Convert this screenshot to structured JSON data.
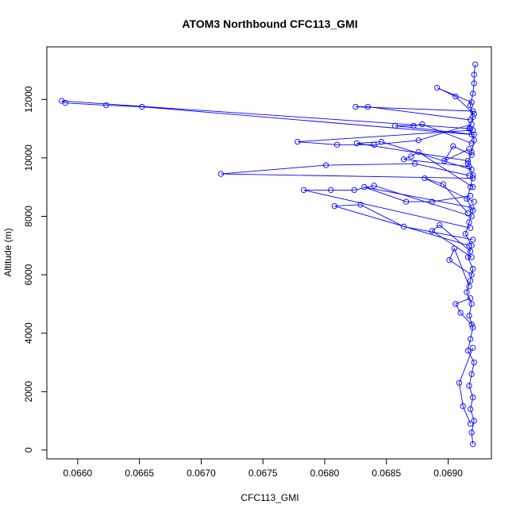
{
  "chart_data": {
    "type": "scatter",
    "title": "ATOM3 Northbound CFC113_GMI",
    "xlabel": "CFC113_GMI",
    "ylabel": "Altitude (m)",
    "xlim": [
      0.06575,
      0.06935
    ],
    "ylim": [
      -300,
      13800
    ],
    "x_ticks": [
      0.066,
      0.0665,
      0.067,
      0.0675,
      0.068,
      0.0685,
      0.069
    ],
    "x_tick_labels": [
      "0.0660",
      "0.0665",
      "0.0670",
      "0.0675",
      "0.0680",
      "0.0685",
      "0.0690"
    ],
    "y_ticks": [
      0,
      2000,
      4000,
      6000,
      8000,
      10000,
      12000
    ],
    "y_tick_labels": [
      "0",
      "2000",
      "4000",
      "6000",
      "8000",
      "10000",
      "12000"
    ],
    "grid": false,
    "legend": "none",
    "marker": "open-circle",
    "connected": true,
    "color": "#0000ff",
    "series": [
      {
        "points": [
          [
            0.0692,
            200
          ],
          [
            0.06919,
            600
          ],
          [
            0.06921,
            1000
          ],
          [
            0.06918,
            1400
          ],
          [
            0.0692,
            1800
          ],
          [
            0.06917,
            2200
          ],
          [
            0.06919,
            2600
          ],
          [
            0.06921,
            3000
          ],
          [
            0.06916,
            3400
          ],
          [
            0.06918,
            3800
          ],
          [
            0.0692,
            4200
          ],
          [
            0.06917,
            4600
          ],
          [
            0.06919,
            5000
          ],
          [
            0.06915,
            5400
          ],
          [
            0.06918,
            5800
          ],
          [
            0.0692,
            6200
          ],
          [
            0.06916,
            6600
          ],
          [
            0.06919,
            7000
          ],
          [
            0.06914,
            7400
          ],
          [
            0.06917,
            7800
          ],
          [
            0.0692,
            8200
          ],
          [
            0.06915,
            8600
          ],
          [
            0.06918,
            9000
          ],
          [
            0.0692,
            9400
          ],
          [
            0.06916,
            9800
          ],
          [
            0.06919,
            10200
          ],
          [
            0.06921,
            10600
          ],
          [
            0.06917,
            11000
          ],
          [
            0.0692,
            11400
          ],
          [
            0.06918,
            11800
          ],
          [
            0.0692,
            12200
          ],
          [
            0.06921,
            12550
          ],
          [
            0.06921,
            12850
          ],
          [
            0.06922,
            13200
          ]
        ]
      },
      {
        "points": [
          [
            0.06919,
            11150
          ],
          [
            0.06876,
            10600
          ],
          [
            0.0684,
            10450
          ],
          [
            0.0681,
            10450
          ],
          [
            0.06778,
            10550
          ],
          [
            0.0692,
            10950
          ]
        ]
      },
      {
        "points": [
          [
            0.06918,
            11000
          ],
          [
            0.06587,
            11950
          ],
          [
            0.0659,
            11880
          ],
          [
            0.06623,
            11800
          ],
          [
            0.06652,
            11750
          ],
          [
            0.06919,
            10800
          ]
        ]
      },
      {
        "points": [
          [
            0.06917,
            9400
          ],
          [
            0.06873,
            9800
          ],
          [
            0.06801,
            9750
          ],
          [
            0.06716,
            9450
          ],
          [
            0.0692,
            9300
          ]
        ]
      },
      {
        "points": [
          [
            0.06919,
            8000
          ],
          [
            0.0684,
            9050
          ],
          [
            0.06824,
            8900
          ],
          [
            0.06805,
            8900
          ],
          [
            0.06783,
            8900
          ],
          [
            0.06918,
            7600
          ]
        ]
      },
      {
        "points": [
          [
            0.0692,
            7200
          ],
          [
            0.06864,
            7650
          ],
          [
            0.06829,
            8400
          ],
          [
            0.06808,
            8350
          ],
          [
            0.06917,
            7000
          ]
        ]
      },
      {
        "points": [
          [
            0.06919,
            9600
          ],
          [
            0.06846,
            10550
          ],
          [
            0.06826,
            10500
          ],
          [
            0.06916,
            9900
          ]
        ]
      },
      {
        "points": [
          [
            0.06921,
            10800
          ],
          [
            0.06857,
            11100
          ],
          [
            0.06872,
            11100
          ],
          [
            0.06879,
            11150
          ],
          [
            0.06919,
            10500
          ]
        ]
      },
      {
        "points": [
          [
            0.0692,
            11600
          ],
          [
            0.06825,
            11750
          ],
          [
            0.06835,
            11750
          ],
          [
            0.06918,
            11300
          ]
        ]
      },
      {
        "points": [
          [
            0.06918,
            8700
          ],
          [
            0.06887,
            8500
          ],
          [
            0.06866,
            8500
          ],
          [
            0.06832,
            9000
          ],
          [
            0.06919,
            8300
          ]
        ]
      },
      {
        "points": [
          [
            0.0692,
            9000
          ],
          [
            0.06876,
            10200
          ],
          [
            0.0687,
            10050
          ],
          [
            0.06864,
            9950
          ],
          [
            0.06917,
            9700
          ]
        ]
      },
      {
        "points": [
          [
            0.06919,
            11900
          ],
          [
            0.06891,
            12400
          ],
          [
            0.06906,
            12100
          ],
          [
            0.06921,
            11500
          ]
        ]
      },
      {
        "points": [
          [
            0.06921,
            8500
          ],
          [
            0.06881,
            9300
          ],
          [
            0.06896,
            9100
          ],
          [
            0.06916,
            8100
          ]
        ]
      },
      {
        "points": [
          [
            0.06918,
            6800
          ],
          [
            0.06893,
            7700
          ],
          [
            0.06887,
            7500
          ],
          [
            0.06919,
            6600
          ]
        ]
      },
      {
        "points": [
          [
            0.06919,
            6000
          ],
          [
            0.06901,
            6500
          ],
          [
            0.06905,
            6900
          ],
          [
            0.06917,
            5600
          ]
        ]
      },
      {
        "points": [
          [
            0.06918,
            5200
          ],
          [
            0.06906,
            5000
          ],
          [
            0.0691,
            4700
          ],
          [
            0.06919,
            4300
          ]
        ]
      },
      {
        "points": [
          [
            0.0692,
            3500
          ],
          [
            0.06909,
            2300
          ],
          [
            0.06912,
            1500
          ],
          [
            0.06918,
            900
          ]
        ]
      },
      {
        "points": [
          [
            0.06917,
            10300
          ],
          [
            0.06897,
            9900
          ],
          [
            0.06904,
            10400
          ],
          [
            0.06919,
            10100
          ]
        ]
      }
    ]
  }
}
